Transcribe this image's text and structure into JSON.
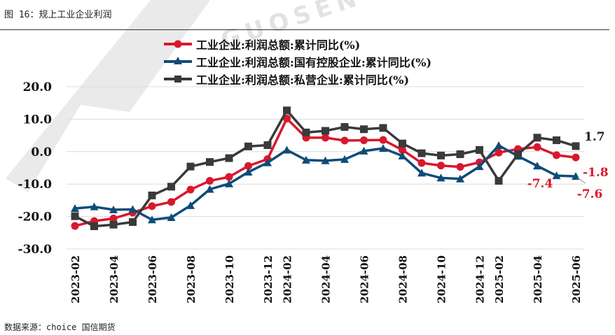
{
  "header": {
    "title": "图 16：规上工业企业利润"
  },
  "footer": {
    "source": "数据来源：choice 国信期货"
  },
  "watermark": {
    "text": "GUOSEN"
  },
  "colors": {
    "red": "#d9182d",
    "blue": "#0e4c78",
    "gray": "#3a3a3a",
    "grid": "#dcdcdc"
  },
  "chart_data": {
    "type": "line",
    "title": "图 16：规上工业企业利润",
    "xlabel": "",
    "ylabel": "",
    "ylim": [
      -30,
      20
    ],
    "yticks": [
      20,
      10,
      0,
      -10,
      -20,
      -30
    ],
    "ytick_labels": [
      "20.0",
      "10.0",
      "0.0",
      "-10.0",
      "-20.0",
      "-30.0"
    ],
    "grid": true,
    "legend_position": "top",
    "categories": [
      "2023-02",
      "2023-03",
      "2023-04",
      "2023-05",
      "2023-06",
      "2023-07",
      "2023-08",
      "2023-09",
      "2023-10",
      "2023-11",
      "2023-12",
      "2024-02",
      "2024-03",
      "2024-04",
      "2024-05",
      "2024-06",
      "2024-07",
      "2024-08",
      "2024-09",
      "2024-10",
      "2024-11",
      "2024-12",
      "2025-02",
      "2025-03",
      "2025-04",
      "2025-05",
      "2025-06"
    ],
    "xtick_labels": [
      "2023-02",
      "2023-04",
      "2023-06",
      "2023-08",
      "2023-10",
      "2023-12",
      "2024-02",
      "2024-04",
      "2024-06",
      "2024-08",
      "2024-10",
      "2024-12",
      "2025-02",
      "2025-04",
      "2025-06"
    ],
    "series": [
      {
        "name": "工业企业:利润总额:累计同比(%)",
        "color": "#d9182d",
        "marker": "circle",
        "values": [
          -22.9,
          -21.4,
          -20.6,
          -18.8,
          -16.8,
          -15.5,
          -11.7,
          -9.0,
          -7.8,
          -4.4,
          -2.3,
          10.2,
          4.3,
          4.3,
          3.4,
          3.5,
          3.6,
          0.5,
          -3.5,
          -4.3,
          -4.7,
          -3.3,
          -0.3,
          0.8,
          1.4,
          -1.1,
          -1.8
        ]
      },
      {
        "name": "工业企业:利润总额:国有控股企业:累计同比(%)",
        "color": "#0e4c78",
        "marker": "triangle",
        "values": [
          -17.5,
          -17.0,
          -17.9,
          -17.8,
          -21.0,
          -20.3,
          -16.6,
          -11.6,
          -9.9,
          -6.3,
          -3.4,
          0.5,
          -2.6,
          -2.8,
          -2.4,
          0.2,
          1.0,
          -1.3,
          -6.6,
          -8.1,
          -8.4,
          -4.6,
          1.9,
          -1.4,
          -4.4,
          -7.4,
          -7.6
        ]
      },
      {
        "name": "工业企业:利润总额:私营企业:累计同比(%)",
        "color": "#3a3a3a",
        "marker": "square",
        "values": [
          -19.9,
          -23.0,
          -22.5,
          -21.7,
          -13.5,
          -10.8,
          -4.6,
          -3.2,
          -2.0,
          1.6,
          2.0,
          12.7,
          5.9,
          6.4,
          7.6,
          6.9,
          7.3,
          2.5,
          -0.5,
          -1.2,
          -0.8,
          0.5,
          -9.0,
          -0.8,
          4.3,
          3.5,
          1.7
        ]
      }
    ],
    "annotations": [
      {
        "text": "1.7",
        "series": 2,
        "color": "#222222"
      },
      {
        "text": "-1.8",
        "series": 0,
        "color": "#d9182d"
      },
      {
        "text": "-7.4",
        "series": 1,
        "color": "#d9182d"
      },
      {
        "text": "-7.6",
        "series": 1,
        "color": "#d9182d"
      }
    ]
  }
}
